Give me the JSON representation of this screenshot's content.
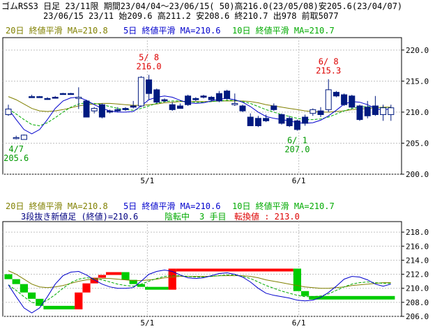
{
  "header": {
    "line1": "ゴムRSS3 日足 23/11限 期間23/04/04～23/06/15( 50)高216.0(23/05/08)安205.6(23/04/07)",
    "line2": "23/06/15 23/11 始209.6 高211.2 安208.6 終210.7 出978 前取5077"
  },
  "colors": {
    "ma20": "#808000",
    "ma5": "#0000cc",
    "ma10": "#00aa00",
    "candle": "#001a80",
    "high_note": "#dd0000",
    "low_note": "#009900",
    "kagi_up": "#ff0000",
    "kagi_down": "#00cc00",
    "grid": "#c0c0c0",
    "border": "#000000"
  },
  "top_legend": {
    "ma20": "20日 終値平滑 MA=210.8",
    "ma5": "5日 終値平滑 MA=210.6",
    "ma10": "10日 終値平滑 MA=210.7"
  },
  "bottom_legend": {
    "ma20": "20日 終値平滑 MA=210.8",
    "ma5": "5日 終値平滑 MA=210.6",
    "ma10": "10日 終値平滑 MA=210.7",
    "line2_a": "3段抜き新値足 (終値)=210.6",
    "line2_b": "陰転中",
    "line2_c": "3 手目",
    "line2_d": "転換値 : 213.0"
  },
  "annotations": [
    {
      "label_date": "5/ 8",
      "label_value": "216.0",
      "kind": "high"
    },
    {
      "label_date": "6/ 8",
      "label_value": "215.3",
      "kind": "high"
    },
    {
      "label_date": "4/7",
      "label_value": "205.6",
      "kind": "low"
    },
    {
      "label_date": "6/ 1",
      "label_value": "207.0",
      "kind": "low"
    }
  ],
  "chart_data": [
    {
      "type": "candlestick",
      "x_ticks": [
        "5/1",
        "6/1"
      ],
      "y_ticks": [
        "220.0",
        "215.0",
        "210.0",
        "205.0",
        "200.0"
      ],
      "ylim": [
        200,
        222
      ],
      "candles": [
        {
          "o": 209.6,
          "h": 211.2,
          "l": 209.4,
          "c": 210.5
        },
        {
          "o": 205.8,
          "h": 206.2,
          "l": 205.6,
          "c": 205.9
        },
        {
          "o": 205.6,
          "h": 206.4,
          "l": 205.6,
          "c": 206.3
        },
        {
          "o": 212.5,
          "h": 212.8,
          "l": 212.3,
          "c": 212.5
        },
        {
          "o": 212.5,
          "h": 212.6,
          "l": 212.4,
          "c": 212.5
        },
        {
          "o": 212.2,
          "h": 212.4,
          "l": 212.0,
          "c": 212.2
        },
        {
          "o": 212.4,
          "h": 212.6,
          "l": 212.2,
          "c": 212.4
        },
        {
          "o": 213.0,
          "h": 213.1,
          "l": 212.9,
          "c": 213.0
        },
        {
          "o": 213.0,
          "h": 213.1,
          "l": 212.9,
          "c": 213.0
        },
        {
          "o": 212.2,
          "h": 214.0,
          "l": 210.5,
          "c": 212.4
        },
        {
          "o": 211.8,
          "h": 212.0,
          "l": 209.2,
          "c": 209.2
        },
        {
          "o": 210.2,
          "h": 210.8,
          "l": 209.8,
          "c": 210.6
        },
        {
          "o": 211.2,
          "h": 211.4,
          "l": 209.0,
          "c": 209.2
        },
        {
          "o": 210.2,
          "h": 210.4,
          "l": 209.8,
          "c": 210.0
        },
        {
          "o": 210.4,
          "h": 210.8,
          "l": 210.0,
          "c": 210.2
        },
        {
          "o": 210.6,
          "h": 210.8,
          "l": 210.2,
          "c": 210.4
        },
        {
          "o": 211.0,
          "h": 211.8,
          "l": 210.6,
          "c": 210.8
        },
        {
          "o": 211.0,
          "h": 215.8,
          "l": 210.8,
          "c": 215.6
        },
        {
          "o": 215.2,
          "h": 216.0,
          "l": 212.0,
          "c": 213.0
        },
        {
          "o": 213.6,
          "h": 213.8,
          "l": 211.4,
          "c": 211.6
        },
        {
          "o": 212.0,
          "h": 212.2,
          "l": 211.6,
          "c": 211.8
        },
        {
          "o": 211.2,
          "h": 211.6,
          "l": 210.2,
          "c": 210.4
        },
        {
          "o": 211.0,
          "h": 211.4,
          "l": 210.6,
          "c": 210.6
        },
        {
          "o": 212.6,
          "h": 212.8,
          "l": 211.0,
          "c": 211.2
        },
        {
          "o": 212.2,
          "h": 212.4,
          "l": 211.8,
          "c": 212.0
        },
        {
          "o": 212.6,
          "h": 212.8,
          "l": 212.2,
          "c": 212.4
        },
        {
          "o": 212.4,
          "h": 212.6,
          "l": 211.8,
          "c": 212.0
        },
        {
          "o": 213.0,
          "h": 213.4,
          "l": 211.6,
          "c": 211.8
        },
        {
          "o": 213.4,
          "h": 213.6,
          "l": 212.0,
          "c": 212.2
        },
        {
          "o": 211.2,
          "h": 213.0,
          "l": 211.0,
          "c": 211.4
        },
        {
          "o": 211.0,
          "h": 211.2,
          "l": 210.0,
          "c": 210.2
        },
        {
          "o": 209.2,
          "h": 209.8,
          "l": 207.8,
          "c": 207.8
        },
        {
          "o": 209.0,
          "h": 209.4,
          "l": 207.6,
          "c": 207.8
        },
        {
          "o": 209.0,
          "h": 209.6,
          "l": 208.4,
          "c": 208.6
        },
        {
          "o": 211.0,
          "h": 211.4,
          "l": 210.2,
          "c": 210.4
        },
        {
          "o": 209.6,
          "h": 209.8,
          "l": 208.0,
          "c": 208.2
        },
        {
          "o": 209.0,
          "h": 209.4,
          "l": 207.6,
          "c": 207.8
        },
        {
          "o": 208.6,
          "h": 208.8,
          "l": 207.0,
          "c": 207.2
        },
        {
          "o": 209.2,
          "h": 209.6,
          "l": 207.8,
          "c": 208.2
        },
        {
          "o": 209.8,
          "h": 210.6,
          "l": 209.4,
          "c": 210.4
        },
        {
          "o": 210.2,
          "h": 210.8,
          "l": 209.2,
          "c": 209.6
        },
        {
          "o": 210.4,
          "h": 215.3,
          "l": 210.0,
          "c": 213.6
        },
        {
          "o": 213.2,
          "h": 213.4,
          "l": 212.4,
          "c": 212.6
        },
        {
          "o": 212.8,
          "h": 213.0,
          "l": 211.0,
          "c": 211.2
        },
        {
          "o": 212.6,
          "h": 212.8,
          "l": 210.6,
          "c": 210.8
        },
        {
          "o": 211.0,
          "h": 211.2,
          "l": 208.6,
          "c": 208.8
        },
        {
          "o": 210.8,
          "h": 211.8,
          "l": 209.0,
          "c": 209.4
        },
        {
          "o": 211.0,
          "h": 212.6,
          "l": 209.4,
          "c": 209.6
        },
        {
          "o": 209.6,
          "h": 211.2,
          "l": 208.6,
          "c": 210.7
        },
        {
          "o": 209.6,
          "h": 211.2,
          "l": 208.6,
          "c": 210.7
        }
      ],
      "ma5": [
        210.5,
        208.8,
        207.2,
        206.5,
        207.2,
        208.8,
        210.6,
        211.8,
        212.3,
        212.4,
        211.9,
        211.2,
        210.6,
        210.2,
        210.0,
        210.0,
        210.1,
        211.0,
        212.0,
        212.4,
        212.6,
        212.4,
        211.9,
        211.5,
        211.4,
        211.5,
        211.8,
        212.1,
        212.2,
        212.0,
        211.6,
        210.9,
        210.0,
        209.3,
        209.0,
        208.8,
        208.6,
        208.3,
        208.2,
        208.3,
        208.7,
        209.4,
        210.3,
        211.3,
        211.7,
        211.6,
        211.2,
        210.6,
        210.3,
        210.6
      ],
      "ma10": [
        210.5,
        209.7,
        208.8,
        208.0,
        207.8,
        208.3,
        209.1,
        210.0,
        210.8,
        211.3,
        211.5,
        211.4,
        211.2,
        210.9,
        210.6,
        210.4,
        210.3,
        210.6,
        211.0,
        211.4,
        211.7,
        211.8,
        211.8,
        211.7,
        211.6,
        211.6,
        211.7,
        211.8,
        211.9,
        211.9,
        211.7,
        211.4,
        210.9,
        210.4,
        210.0,
        209.6,
        209.3,
        209.0,
        208.8,
        208.8,
        208.9,
        209.2,
        209.7,
        210.2,
        210.6,
        210.8,
        210.9,
        210.8,
        210.7,
        210.7
      ],
      "ma20": [
        212.5,
        212.0,
        211.3,
        210.6,
        210.2,
        210.1,
        210.2,
        210.4,
        210.7,
        211.0,
        211.2,
        211.3,
        211.4,
        211.4,
        211.3,
        211.2,
        211.1,
        211.1,
        211.2,
        211.3,
        211.5,
        211.6,
        211.7,
        211.7,
        211.7,
        211.7,
        211.7,
        211.8,
        211.8,
        211.8,
        211.8,
        211.7,
        211.5,
        211.2,
        211.0,
        210.8,
        210.6,
        210.4,
        210.2,
        210.1,
        210.0,
        210.0,
        210.1,
        210.2,
        210.4,
        210.5,
        210.6,
        210.7,
        210.8,
        210.8
      ],
      "high_note_indices": [
        18,
        41
      ],
      "low_note_indices": [
        1,
        37
      ]
    },
    {
      "type": "new-price-bars",
      "x_ticks": [
        "5/1",
        "6/1"
      ],
      "y_ticks": [
        "218.0",
        "216.0",
        "214.0",
        "212.0",
        "210.0",
        "208.0",
        "206.0"
      ],
      "ylim": [
        206,
        219.5
      ],
      "bricks": [
        {
          "i0": 0,
          "i1": 1,
          "lo": 211.3,
          "hi": 212.0,
          "dir": "down"
        },
        {
          "i0": 1,
          "i1": 2,
          "lo": 210.6,
          "hi": 211.3,
          "dir": "down"
        },
        {
          "i0": 2,
          "i1": 3,
          "lo": 209.4,
          "hi": 210.6,
          "dir": "down"
        },
        {
          "i0": 3,
          "i1": 4,
          "lo": 208.5,
          "hi": 209.4,
          "dir": "down"
        },
        {
          "i0": 4,
          "i1": 5,
          "lo": 207.5,
          "hi": 208.5,
          "dir": "down"
        },
        {
          "i0": 5,
          "i1": 9,
          "lo": 207.0,
          "hi": 207.5,
          "dir": "down"
        },
        {
          "i0": 9,
          "i1": 10,
          "lo": 207.0,
          "hi": 209.4,
          "dir": "up"
        },
        {
          "i0": 10,
          "i1": 11,
          "lo": 209.4,
          "hi": 210.7,
          "dir": "up"
        },
        {
          "i0": 11,
          "i1": 12,
          "lo": 210.7,
          "hi": 211.5,
          "dir": "up"
        },
        {
          "i0": 12,
          "i1": 13,
          "lo": 211.5,
          "hi": 211.9,
          "dir": "up"
        },
        {
          "i0": 13,
          "i1": 15,
          "lo": 211.9,
          "hi": 212.3,
          "dir": "up"
        },
        {
          "i0": 15,
          "i1": 16,
          "lo": 211.2,
          "hi": 212.3,
          "dir": "down"
        },
        {
          "i0": 16,
          "i1": 17,
          "lo": 210.6,
          "hi": 211.2,
          "dir": "down"
        },
        {
          "i0": 17,
          "i1": 18,
          "lo": 210.2,
          "hi": 210.6,
          "dir": "down"
        },
        {
          "i0": 18,
          "i1": 21,
          "lo": 209.8,
          "hi": 210.2,
          "dir": "down"
        },
        {
          "i0": 21,
          "i1": 22,
          "lo": 209.8,
          "hi": 212.8,
          "dir": "up"
        },
        {
          "i0": 22,
          "i1": 37,
          "lo": 212.4,
          "hi": 212.8,
          "dir": "up"
        },
        {
          "i0": 37,
          "i1": 38,
          "lo": 209.6,
          "hi": 212.8,
          "dir": "down"
        },
        {
          "i0": 38,
          "i1": 39,
          "lo": 208.9,
          "hi": 209.6,
          "dir": "down"
        },
        {
          "i0": 39,
          "i1": 50,
          "lo": 208.4,
          "hi": 208.9,
          "dir": "down"
        }
      ]
    }
  ]
}
